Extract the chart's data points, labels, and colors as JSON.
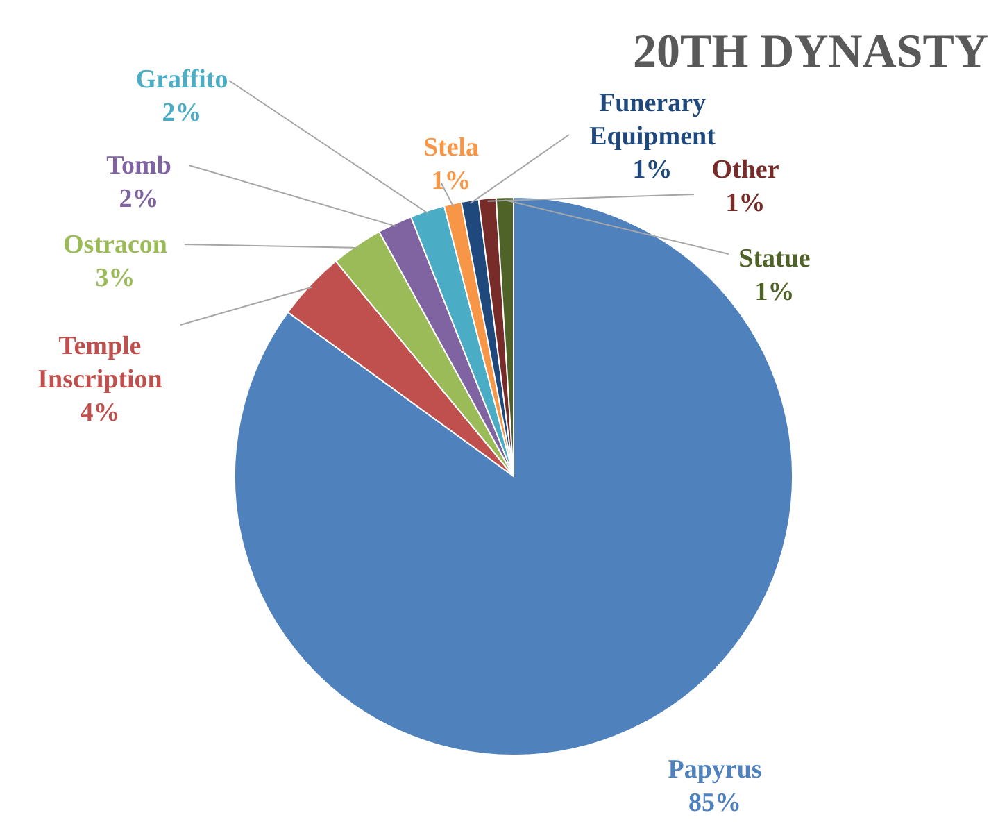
{
  "chart_data": {
    "type": "pie",
    "title": "20TH DYNASTY",
    "categories": [
      "Papyrus",
      "Temple Inscription",
      "Ostracon",
      "Tomb",
      "Graffito",
      "Stela",
      "Funerary Equipment",
      "Other",
      "Statue"
    ],
    "values": [
      85,
      4,
      3,
      2,
      2,
      1,
      1,
      1,
      1
    ],
    "value_labels": [
      "85%",
      "4%",
      "3%",
      "2%",
      "2%",
      "1%",
      "1%",
      "1%",
      "1%"
    ],
    "colors": [
      "#4f81bd",
      "#c0504d",
      "#9bbb59",
      "#8064a2",
      "#4bacc6",
      "#f79646",
      "#1f497d",
      "#772c2a",
      "#4f6228"
    ]
  }
}
